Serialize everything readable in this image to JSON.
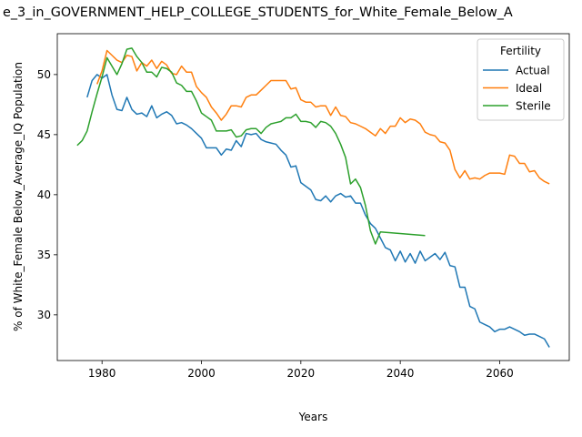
{
  "chart_data": {
    "type": "line",
    "title": "e_3_in_GOVERNMENT_HELP_COLLEGE_STUDENTS_for_White_Female_Below_A",
    "xlabel": "Years",
    "ylabel": "% of White_Female Below_Average_IQ Population",
    "xlim": [
      1971,
      2074
    ],
    "ylim": [
      26.2,
      53.4
    ],
    "xticks": [
      1980,
      2000,
      2020,
      2040,
      2060
    ],
    "yticks": [
      30,
      35,
      40,
      45,
      50
    ],
    "grid": false,
    "legend": {
      "title": "Fertility",
      "placement": "top-right"
    },
    "series": [
      {
        "name": "Actual",
        "color": "#1f77b4",
        "points": [
          [
            1977,
            48.1
          ],
          [
            1978,
            49.5
          ],
          [
            1979,
            50.0
          ],
          [
            1980,
            49.7
          ],
          [
            1981,
            50.0
          ],
          [
            1982,
            48.3
          ],
          [
            1983,
            47.1
          ],
          [
            1984,
            47.0
          ],
          [
            1985,
            48.1
          ],
          [
            1986,
            47.1
          ],
          [
            1987,
            46.7
          ],
          [
            1988,
            46.8
          ],
          [
            1989,
            46.5
          ],
          [
            1990,
            47.4
          ],
          [
            1991,
            46.4
          ],
          [
            1992,
            46.7
          ],
          [
            1993,
            46.9
          ],
          [
            1994,
            46.6
          ],
          [
            1995,
            45.9
          ],
          [
            1996,
            46.0
          ],
          [
            1997,
            45.8
          ],
          [
            1998,
            45.5
          ],
          [
            1999,
            45.1
          ],
          [
            2000,
            44.7
          ],
          [
            2001,
            43.9
          ],
          [
            2002,
            43.9
          ],
          [
            2003,
            43.9
          ],
          [
            2004,
            43.3
          ],
          [
            2005,
            43.8
          ],
          [
            2006,
            43.7
          ],
          [
            2007,
            44.5
          ],
          [
            2008,
            44.0
          ],
          [
            2009,
            45.1
          ],
          [
            2010,
            45.0
          ],
          [
            2011,
            45.1
          ],
          [
            2012,
            44.6
          ],
          [
            2013,
            44.4
          ],
          [
            2014,
            44.3
          ],
          [
            2015,
            44.2
          ],
          [
            2016,
            43.7
          ],
          [
            2017,
            43.3
          ],
          [
            2018,
            42.3
          ],
          [
            2019,
            42.4
          ],
          [
            2020,
            41.0
          ],
          [
            2021,
            40.7
          ],
          [
            2022,
            40.4
          ],
          [
            2023,
            39.6
          ],
          [
            2024,
            39.5
          ],
          [
            2025,
            39.9
          ],
          [
            2026,
            39.4
          ],
          [
            2027,
            39.9
          ],
          [
            2028,
            40.1
          ],
          [
            2029,
            39.8
          ],
          [
            2030,
            39.9
          ],
          [
            2031,
            39.3
          ],
          [
            2032,
            39.3
          ],
          [
            2033,
            38.3
          ],
          [
            2034,
            37.6
          ],
          [
            2035,
            37.2
          ],
          [
            2036,
            36.4
          ],
          [
            2037,
            35.6
          ],
          [
            2038,
            35.4
          ],
          [
            2039,
            34.5
          ],
          [
            2040,
            35.3
          ],
          [
            2041,
            34.4
          ],
          [
            2042,
            35.1
          ],
          [
            2043,
            34.3
          ],
          [
            2044,
            35.3
          ],
          [
            2045,
            34.5
          ],
          [
            2046,
            34.8
          ],
          [
            2047,
            35.1
          ],
          [
            2048,
            34.6
          ],
          [
            2049,
            35.2
          ],
          [
            2050,
            34.1
          ],
          [
            2051,
            34.0
          ],
          [
            2052,
            32.3
          ],
          [
            2053,
            32.3
          ],
          [
            2054,
            30.7
          ],
          [
            2055,
            30.5
          ],
          [
            2056,
            29.4
          ],
          [
            2057,
            29.2
          ],
          [
            2058,
            29.0
          ],
          [
            2059,
            28.6
          ],
          [
            2060,
            28.8
          ],
          [
            2061,
            28.8
          ],
          [
            2062,
            29.0
          ],
          [
            2063,
            28.8
          ],
          [
            2064,
            28.6
          ],
          [
            2065,
            28.3
          ],
          [
            2066,
            28.4
          ],
          [
            2067,
            28.4
          ],
          [
            2068,
            28.2
          ],
          [
            2069,
            28.0
          ],
          [
            2070,
            27.3
          ]
        ]
      },
      {
        "name": "Ideal",
        "color": "#ff7f0e",
        "points": [
          [
            1979,
            49.2
          ],
          [
            1980,
            50.3
          ],
          [
            1981,
            52.0
          ],
          [
            1982,
            51.6
          ],
          [
            1983,
            51.2
          ],
          [
            1984,
            51.0
          ],
          [
            1985,
            51.6
          ],
          [
            1986,
            51.5
          ],
          [
            1987,
            50.3
          ],
          [
            1988,
            51.0
          ],
          [
            1989,
            50.7
          ],
          [
            1990,
            51.2
          ],
          [
            1991,
            50.5
          ],
          [
            1992,
            51.1
          ],
          [
            1993,
            50.8
          ],
          [
            1994,
            50.1
          ],
          [
            1995,
            50.0
          ],
          [
            1996,
            50.7
          ],
          [
            1997,
            50.2
          ],
          [
            1998,
            50.2
          ],
          [
            1999,
            49.0
          ],
          [
            2000,
            48.5
          ],
          [
            2001,
            48.1
          ],
          [
            2002,
            47.3
          ],
          [
            2003,
            46.8
          ],
          [
            2004,
            46.2
          ],
          [
            2005,
            46.7
          ],
          [
            2006,
            47.4
          ],
          [
            2007,
            47.4
          ],
          [
            2008,
            47.3
          ],
          [
            2009,
            48.1
          ],
          [
            2010,
            48.3
          ],
          [
            2011,
            48.3
          ],
          [
            2012,
            48.7
          ],
          [
            2013,
            49.1
          ],
          [
            2014,
            49.5
          ],
          [
            2015,
            49.5
          ],
          [
            2016,
            49.5
          ],
          [
            2017,
            49.5
          ],
          [
            2018,
            48.8
          ],
          [
            2019,
            48.9
          ],
          [
            2020,
            47.9
          ],
          [
            2021,
            47.7
          ],
          [
            2022,
            47.7
          ],
          [
            2023,
            47.3
          ],
          [
            2024,
            47.4
          ],
          [
            2025,
            47.4
          ],
          [
            2026,
            46.6
          ],
          [
            2027,
            47.3
          ],
          [
            2028,
            46.6
          ],
          [
            2029,
            46.5
          ],
          [
            2030,
            46.0
          ],
          [
            2031,
            45.9
          ],
          [
            2032,
            45.7
          ],
          [
            2033,
            45.5
          ],
          [
            2034,
            45.2
          ],
          [
            2035,
            44.9
          ],
          [
            2036,
            45.5
          ],
          [
            2037,
            45.1
          ],
          [
            2038,
            45.7
          ],
          [
            2039,
            45.7
          ],
          [
            2040,
            46.4
          ],
          [
            2041,
            46.0
          ],
          [
            2042,
            46.3
          ],
          [
            2043,
            46.2
          ],
          [
            2044,
            45.9
          ],
          [
            2045,
            45.2
          ],
          [
            2046,
            45.0
          ],
          [
            2047,
            44.9
          ],
          [
            2048,
            44.4
          ],
          [
            2049,
            44.3
          ],
          [
            2050,
            43.7
          ],
          [
            2051,
            42.1
          ],
          [
            2052,
            41.4
          ],
          [
            2053,
            42.0
          ],
          [
            2054,
            41.3
          ],
          [
            2055,
            41.4
          ],
          [
            2056,
            41.3
          ],
          [
            2057,
            41.6
          ],
          [
            2058,
            41.8
          ],
          [
            2059,
            41.8
          ],
          [
            2060,
            41.8
          ],
          [
            2061,
            41.7
          ],
          [
            2062,
            43.3
          ],
          [
            2063,
            43.2
          ],
          [
            2064,
            42.6
          ],
          [
            2065,
            42.6
          ],
          [
            2066,
            41.9
          ],
          [
            2067,
            42.0
          ],
          [
            2068,
            41.4
          ],
          [
            2069,
            41.1
          ],
          [
            2070,
            40.9
          ]
        ]
      },
      {
        "name": "Sterile",
        "color": "#2ca02c",
        "points": [
          [
            1975,
            44.1
          ],
          [
            1976,
            44.5
          ],
          [
            1977,
            45.3
          ],
          [
            1978,
            46.9
          ],
          [
            1979,
            48.4
          ],
          [
            1980,
            49.8
          ],
          [
            1981,
            51.4
          ],
          [
            1982,
            50.7
          ],
          [
            1983,
            50.0
          ],
          [
            1984,
            50.9
          ],
          [
            1985,
            52.1
          ],
          [
            1986,
            52.2
          ],
          [
            1987,
            51.5
          ],
          [
            1988,
            51.0
          ],
          [
            1989,
            50.2
          ],
          [
            1990,
            50.2
          ],
          [
            1991,
            49.8
          ],
          [
            1992,
            50.6
          ],
          [
            1993,
            50.5
          ],
          [
            1994,
            50.2
          ],
          [
            1995,
            49.3
          ],
          [
            1996,
            49.1
          ],
          [
            1997,
            48.6
          ],
          [
            1998,
            48.6
          ],
          [
            1999,
            47.8
          ],
          [
            2000,
            46.8
          ],
          [
            2001,
            46.5
          ],
          [
            2002,
            46.2
          ],
          [
            2003,
            45.3
          ],
          [
            2004,
            45.3
          ],
          [
            2005,
            45.3
          ],
          [
            2006,
            45.4
          ],
          [
            2007,
            44.8
          ],
          [
            2008,
            44.9
          ],
          [
            2009,
            45.4
          ],
          [
            2010,
            45.5
          ],
          [
            2011,
            45.5
          ],
          [
            2012,
            45.1
          ],
          [
            2013,
            45.6
          ],
          [
            2014,
            45.9
          ],
          [
            2015,
            46.0
          ],
          [
            2016,
            46.1
          ],
          [
            2017,
            46.4
          ],
          [
            2018,
            46.4
          ],
          [
            2019,
            46.7
          ],
          [
            2020,
            46.1
          ],
          [
            2021,
            46.1
          ],
          [
            2022,
            46.0
          ],
          [
            2023,
            45.6
          ],
          [
            2024,
            46.1
          ],
          [
            2025,
            46.0
          ],
          [
            2026,
            45.7
          ],
          [
            2027,
            45.1
          ],
          [
            2028,
            44.2
          ],
          [
            2029,
            43.1
          ],
          [
            2030,
            40.9
          ],
          [
            2031,
            41.3
          ],
          [
            2032,
            40.6
          ],
          [
            2033,
            39.1
          ],
          [
            2034,
            37.0
          ],
          [
            2035,
            35.9
          ],
          [
            2036,
            36.9
          ],
          [
            2045,
            36.6
          ]
        ]
      }
    ]
  }
}
